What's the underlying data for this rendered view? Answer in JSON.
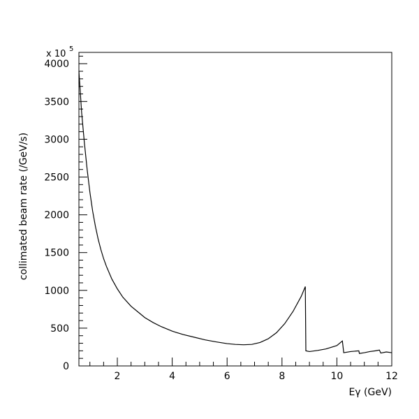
{
  "chart_data": {
    "type": "line",
    "xlabel": "Eγ (GeV)",
    "ylabel": "collimated beam rate (/GeV/s)",
    "y_multiplier": "x 10",
    "y_multiplier_exponent": "5",
    "xlim": [
      0.6,
      12
    ],
    "ylim": [
      0,
      4150
    ],
    "x_ticks": [
      2,
      4,
      6,
      8,
      10,
      12
    ],
    "y_ticks": [
      0,
      500,
      1000,
      1500,
      2000,
      2500,
      3000,
      3500,
      4000
    ],
    "grid": false,
    "series": [
      {
        "x": [
          0.6,
          0.7,
          0.8,
          0.9,
          1.0,
          1.1,
          1.2,
          1.3,
          1.4,
          1.5,
          1.6,
          1.8,
          2.0,
          2.2,
          2.5,
          2.8,
          3.0,
          3.3,
          3.6,
          4.0,
          4.4,
          4.8,
          5.2,
          5.6,
          6.0,
          6.3,
          6.6,
          6.9,
          7.2,
          7.5,
          7.8,
          8.1,
          8.4,
          8.7,
          8.85,
          8.87,
          9.0,
          9.3,
          9.6,
          10.0,
          10.2,
          10.25,
          10.5,
          10.8,
          10.82,
          11.0,
          11.2,
          11.4,
          11.55,
          11.6,
          11.8,
          12.0
        ],
        "y": [
          3900,
          3350,
          2950,
          2600,
          2300,
          2050,
          1850,
          1680,
          1540,
          1420,
          1320,
          1150,
          1020,
          910,
          790,
          700,
          640,
          575,
          520,
          460,
          415,
          380,
          345,
          318,
          295,
          285,
          280,
          285,
          310,
          360,
          440,
          560,
          720,
          920,
          1050,
          200,
          190,
          205,
          225,
          270,
          330,
          175,
          190,
          200,
          165,
          175,
          190,
          200,
          210,
          170,
          185,
          175
        ]
      }
    ]
  }
}
